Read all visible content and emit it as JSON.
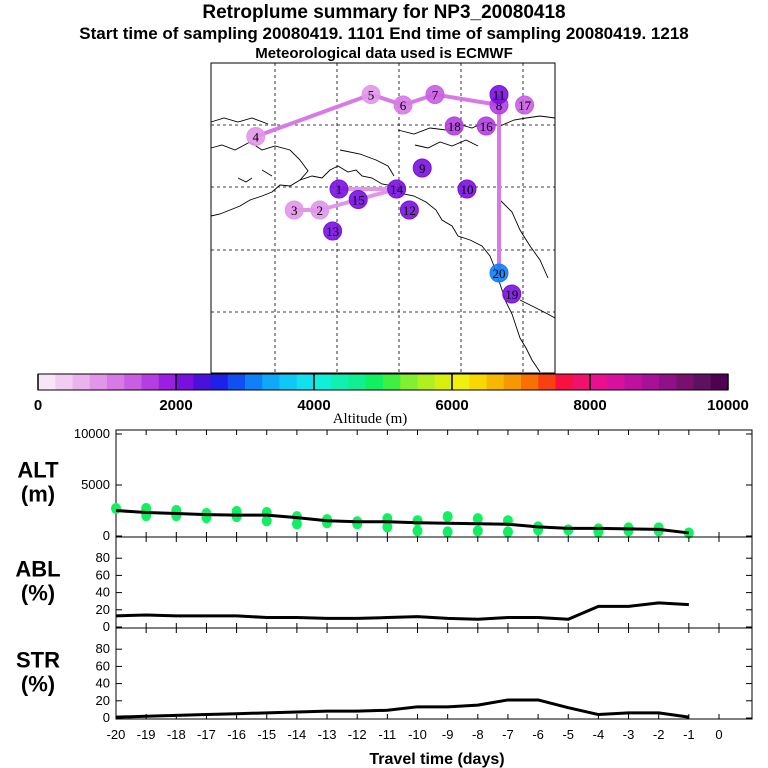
{
  "header": {
    "title": "Retroplume summary for NP3_20080418",
    "subtitle": "Start time of sampling 20080419.  1101     End time of sampling 20080419.  1218",
    "met_source": "Meteorological data used is ECMWF"
  },
  "colorbar": {
    "label": "Altitude (m)",
    "ticks": [
      "0",
      "2000",
      "4000",
      "6000",
      "8000",
      "10000"
    ],
    "colors": [
      "#f7e6f7",
      "#f1cdf2",
      "#eab3ee",
      "#e296ea",
      "#d77ae6",
      "#c95ee3",
      "#b43ee2",
      "#9b1ee3",
      "#7a10e0",
      "#4a10dc",
      "#2020e8",
      "#1050f0",
      "#1080f8",
      "#10a8fa",
      "#10c8f8",
      "#10e0f0",
      "#10f0d8",
      "#10f0b0",
      "#10f090",
      "#10f060",
      "#40f040",
      "#80f030",
      "#b0f020",
      "#d8f010",
      "#f0f010",
      "#f8d800",
      "#f8b800",
      "#f89800",
      "#f87000",
      "#f84010",
      "#f81040",
      "#f01070",
      "#e81090",
      "#d810a0",
      "#c010a0",
      "#a81098",
      "#901088",
      "#781070",
      "#601060",
      "#500050"
    ]
  },
  "map": {
    "plume_points": [
      {
        "label": "1",
        "lon": -165,
        "lat": 70,
        "color": "#7a10e0"
      },
      {
        "label": "2",
        "lon": -168,
        "lat": 68,
        "color": "#e296ea"
      },
      {
        "label": "3",
        "lon": -172,
        "lat": 68,
        "color": "#e296ea"
      },
      {
        "label": "4",
        "lon": -178,
        "lat": 75,
        "color": "#e296ea"
      },
      {
        "label": "5",
        "lon": -160,
        "lat": 79,
        "color": "#e296ea"
      },
      {
        "label": "6",
        "lon": -155,
        "lat": 78,
        "color": "#d77ae6"
      },
      {
        "label": "7",
        "lon": -150,
        "lat": 79,
        "color": "#c95ee3"
      },
      {
        "label": "8",
        "lon": -140,
        "lat": 78,
        "color": "#b43ee2"
      },
      {
        "label": "9",
        "lon": -152,
        "lat": 72,
        "color": "#7a10e0"
      },
      {
        "label": "10",
        "lon": -145,
        "lat": 70,
        "color": "#7a10e0"
      },
      {
        "label": "11",
        "lon": -140,
        "lat": 79,
        "color": "#7a10e0"
      },
      {
        "label": "12",
        "lon": -154,
        "lat": 68,
        "color": "#7a10e0"
      },
      {
        "label": "13",
        "lon": -166,
        "lat": 66,
        "color": "#7a10e0"
      },
      {
        "label": "14",
        "lon": -156,
        "lat": 70,
        "color": "#7a10e0"
      },
      {
        "label": "15",
        "lon": -162,
        "lat": 69,
        "color": "#7a10e0"
      },
      {
        "label": "16",
        "lon": -142,
        "lat": 76,
        "color": "#b43ee2"
      },
      {
        "label": "17",
        "lon": -136,
        "lat": 78,
        "color": "#c95ee3"
      },
      {
        "label": "18",
        "lon": -147,
        "lat": 76,
        "color": "#b43ee2"
      },
      {
        "label": "19",
        "lon": -138,
        "lat": 60,
        "color": "#7a10e0"
      },
      {
        "label": "20",
        "lon": -140,
        "lat": 62,
        "color": "#1080f8"
      }
    ]
  },
  "chart_data": [
    {
      "type": "line",
      "panel": "ALT",
      "ylabel": "ALT\n(m)",
      "ylim": [
        0,
        10000
      ],
      "yticks": [
        0,
        5000,
        10000
      ],
      "x": [
        -20,
        -19,
        -18,
        -17,
        -16,
        -15,
        -14,
        -13,
        -12,
        -11,
        -10,
        -9,
        -8,
        -7,
        -6,
        -5,
        -4,
        -3,
        -2,
        -1
      ],
      "series": [
        {
          "name": "median altitude",
          "values": [
            2500,
            2300,
            2200,
            2100,
            2050,
            2050,
            1800,
            1500,
            1400,
            1400,
            1300,
            1250,
            1200,
            1150,
            900,
            750,
            750,
            700,
            650,
            300
          ]
        }
      ],
      "scatter": [
        {
          "x": -20,
          "y": 2700
        },
        {
          "x": -19,
          "y": 2700
        },
        {
          "x": -19,
          "y": 2000
        },
        {
          "x": -18,
          "y": 2500
        },
        {
          "x": -18,
          "y": 2000
        },
        {
          "x": -17,
          "y": 2200
        },
        {
          "x": -17,
          "y": 1800
        },
        {
          "x": -16,
          "y": 2400
        },
        {
          "x": -16,
          "y": 1900
        },
        {
          "x": -15,
          "y": 2300
        },
        {
          "x": -15,
          "y": 1500
        },
        {
          "x": -14,
          "y": 1900
        },
        {
          "x": -14,
          "y": 1200
        },
        {
          "x": -13,
          "y": 1600
        },
        {
          "x": -13,
          "y": 1300
        },
        {
          "x": -12,
          "y": 1400
        },
        {
          "x": -12,
          "y": 1200
        },
        {
          "x": -11,
          "y": 1700
        },
        {
          "x": -11,
          "y": 900
        },
        {
          "x": -10,
          "y": 1500
        },
        {
          "x": -10,
          "y": 500
        },
        {
          "x": -9,
          "y": 1900
        },
        {
          "x": -9,
          "y": 400
        },
        {
          "x": -8,
          "y": 1700
        },
        {
          "x": -8,
          "y": 500
        },
        {
          "x": -7,
          "y": 1500
        },
        {
          "x": -7,
          "y": 400
        },
        {
          "x": -6,
          "y": 900
        },
        {
          "x": -6,
          "y": 600
        },
        {
          "x": -5,
          "y": 600
        },
        {
          "x": -4,
          "y": 700
        },
        {
          "x": -4,
          "y": 400
        },
        {
          "x": -3,
          "y": 800
        },
        {
          "x": -3,
          "y": 500
        },
        {
          "x": -2,
          "y": 800
        },
        {
          "x": -2,
          "y": 500
        },
        {
          "x": -1,
          "y": 300
        }
      ],
      "scatter_color": "#10f060"
    },
    {
      "type": "line",
      "panel": "ABL",
      "ylabel": "ABL\n(%)",
      "ylim": [
        0,
        100
      ],
      "yticks": [
        0,
        20,
        40,
        60,
        80
      ],
      "x": [
        -20,
        -19,
        -18,
        -17,
        -16,
        -15,
        -14,
        -13,
        -12,
        -11,
        -10,
        -9,
        -8,
        -7,
        -6,
        -5,
        -4,
        -3,
        -2,
        -1
      ],
      "series": [
        {
          "name": "ABL fraction",
          "values": [
            13,
            14,
            13,
            13,
            13,
            11,
            11,
            10,
            10,
            11,
            12,
            10,
            9,
            11,
            11,
            9,
            24,
            24,
            28,
            26
          ]
        }
      ]
    },
    {
      "type": "line",
      "panel": "STR",
      "ylabel": "STR\n(%)",
      "ylim": [
        0,
        100
      ],
      "yticks": [
        0,
        20,
        40,
        60,
        80
      ],
      "x": [
        -20,
        -19,
        -18,
        -17,
        -16,
        -15,
        -14,
        -13,
        -12,
        -11,
        -10,
        -9,
        -8,
        -7,
        -6,
        -5,
        -4,
        -3,
        -2,
        -1
      ],
      "series": [
        {
          "name": "STR fraction",
          "values": [
            1,
            2,
            3,
            4,
            5,
            6,
            7,
            8,
            8,
            9,
            13,
            13,
            15,
            21,
            21,
            12,
            4,
            6,
            6,
            1
          ]
        }
      ],
      "xlabel": "Travel time (days)",
      "xticks": [
        "-20",
        "-19",
        "-18",
        "-17",
        "-16",
        "-15",
        "-14",
        "-13",
        "-12",
        "-11",
        "-10",
        "-9",
        "-8",
        "-7",
        "-6",
        "-5",
        "-4",
        "-3",
        "-2",
        "-1",
        "0"
      ]
    }
  ]
}
